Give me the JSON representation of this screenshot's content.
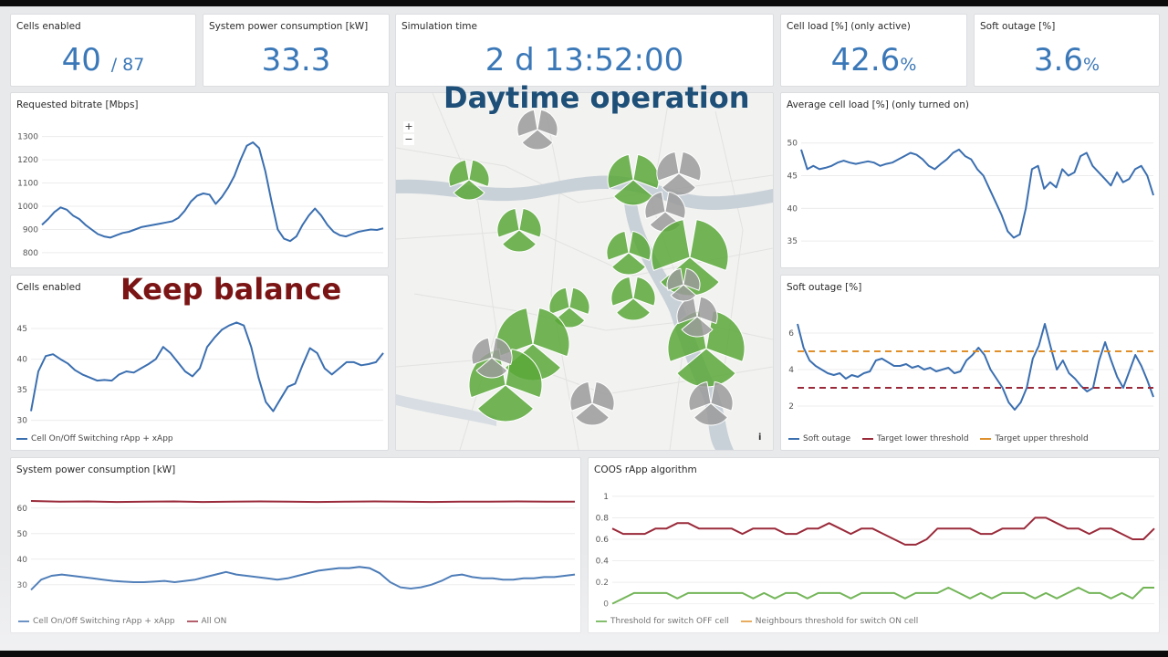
{
  "stats": {
    "cells_enabled": {
      "title": "Cells enabled",
      "value": "40",
      "suffix": "/ 87"
    },
    "power": {
      "title": "System power consumption [kW]",
      "value": "33.3"
    },
    "sim_time": {
      "title": "Simulation time",
      "value": "2 d 13:52:00"
    },
    "cell_load": {
      "title": "Cell load [%] (only active)",
      "value": "42.6",
      "unit": "%"
    },
    "soft_outage": {
      "title": "Soft outage [%]",
      "value": "3.6",
      "unit": "%"
    }
  },
  "overlays": {
    "daytime": "Daytime operation",
    "balance": "Keep balance"
  },
  "map": {
    "zoom_in": "+",
    "zoom_out": "−",
    "info": "i"
  },
  "colors": {
    "blue": "#3b6fb0",
    "red": "#9a2a3a",
    "orange": "#e0902a",
    "green": "#5aa83a",
    "stat": "#3b78b8"
  },
  "charts": {
    "bitrate": {
      "title": "Requested bitrate [Mbps]",
      "type": "line",
      "yticks": [
        800,
        900,
        1000,
        1100,
        1200,
        1300
      ],
      "ylim": [
        780,
        1330
      ],
      "series": [
        {
          "name": "Requested bitrate",
          "color": "#3b6fb0",
          "values": [
            920,
            945,
            975,
            995,
            985,
            960,
            945,
            920,
            900,
            880,
            870,
            865,
            875,
            885,
            890,
            900,
            910,
            915,
            920,
            925,
            930,
            935,
            950,
            980,
            1020,
            1045,
            1055,
            1050,
            1010,
            1040,
            1080,
            1130,
            1200,
            1260,
            1275,
            1250,
            1150,
            1020,
            900,
            860,
            850,
            870,
            920,
            960,
            990,
            960,
            920,
            890,
            875,
            870,
            880,
            890,
            895,
            900,
            898,
            905
          ]
        }
      ]
    },
    "avg_cell_load": {
      "title": "Average cell load [%] (only turned on)",
      "type": "line",
      "yticks": [
        35,
        40,
        45,
        50
      ],
      "ylim": [
        32.5,
        51.5
      ],
      "series": [
        {
          "name": "Average cell load",
          "color": "#3b6fb0",
          "values": [
            49,
            46,
            46.5,
            46,
            46.2,
            46.5,
            47,
            47.3,
            47,
            46.8,
            47,
            47.2,
            47,
            46.5,
            46.8,
            47,
            47.5,
            48,
            48.5,
            48.2,
            47.5,
            46.5,
            46,
            46.8,
            47.5,
            48.5,
            49,
            48,
            47.5,
            46,
            45,
            43,
            41,
            39,
            36.5,
            35.5,
            36,
            40,
            46,
            46.5,
            43,
            44,
            43.2,
            46,
            45,
            45.5,
            48,
            48.5,
            46.5,
            45.5,
            44.5,
            43.5,
            45.5,
            44,
            44.5,
            46,
            46.5,
            45,
            42
          ]
        }
      ]
    },
    "cells_enabled": {
      "title": "Cells enabled",
      "type": "line",
      "yticks": [
        30,
        35,
        40,
        45
      ],
      "ylim": [
        29.5,
        46.5
      ],
      "series": [
        {
          "name": "Cell On/Off Switching rApp + xApp",
          "color": "#3b6fb0",
          "values": [
            31.5,
            38,
            40.5,
            40.8,
            40,
            39.3,
            38.2,
            37.5,
            37,
            36.5,
            36.6,
            36.5,
            37.5,
            38,
            37.8,
            38.5,
            39.2,
            40,
            42,
            41,
            39.5,
            38,
            37.2,
            38.5,
            42,
            43.5,
            44.8,
            45.5,
            46,
            45.5,
            42,
            37,
            33,
            31.5,
            33.5,
            35.5,
            36,
            39,
            41.8,
            41,
            38.5,
            37.5,
            38.5,
            39.5,
            39.5,
            39,
            39.2,
            39.5,
            41
          ]
        }
      ],
      "legend": [
        "Cell On/Off Switching rApp + xApp"
      ]
    },
    "soft_outage": {
      "title": "Soft outage [%]",
      "type": "line",
      "yticks": [
        2,
        4,
        6
      ],
      "ylim": [
        1.3,
        6.9
      ],
      "series": [
        {
          "name": "Soft outage",
          "color": "#3b6fb0",
          "values": [
            6.5,
            5.2,
            4.5,
            4.2,
            4,
            3.8,
            3.7,
            3.8,
            3.5,
            3.7,
            3.6,
            3.8,
            3.9,
            4.5,
            4.6,
            4.4,
            4.2,
            4.2,
            4.3,
            4.1,
            4.2,
            4,
            4.1,
            3.9,
            4,
            4.1,
            3.8,
            3.9,
            4.5,
            4.8,
            5.2,
            4.8,
            4,
            3.5,
            3,
            2.2,
            1.8,
            2.2,
            3,
            4.6,
            5.3,
            6.5,
            5.2,
            4,
            4.5,
            3.8,
            3.5,
            3.1,
            2.8,
            3,
            4.5,
            5.5,
            4.5,
            3.6,
            3,
            3.9,
            4.8,
            4.2,
            3.4,
            2.5
          ]
        },
        {
          "name": "Target lower threshold",
          "color": "#9a2a3a",
          "values": [
            3,
            3
          ]
        },
        {
          "name": "Target upper threshold",
          "color": "#e0902a",
          "values": [
            5,
            5
          ]
        }
      ],
      "legend": [
        "Soft outage",
        "Target lower threshold",
        "Target upper threshold"
      ]
    },
    "power": {
      "title": "System power consumption [kW]",
      "type": "line",
      "yticks": [
        30,
        40,
        50,
        60
      ],
      "ylim": [
        26,
        66
      ],
      "series": [
        {
          "name": "Cell On/Off Switching rApp + xApp",
          "color": "#3b6fb0",
          "values": [
            28,
            32,
            33.5,
            34,
            33.5,
            33,
            32.5,
            32,
            31.5,
            31.2,
            31,
            31,
            31.2,
            31.5,
            31,
            31.5,
            32,
            33,
            34,
            35,
            34,
            33.5,
            33,
            32.5,
            32,
            32.5,
            33.5,
            34.5,
            35.5,
            36,
            36.5,
            36.5,
            37,
            36.5,
            34.5,
            31,
            29,
            28.5,
            29,
            30,
            31.5,
            33.5,
            34,
            33,
            32.5,
            32.5,
            32,
            32,
            32.5,
            32.5,
            33,
            33,
            33.5,
            34
          ]
        },
        {
          "name": "All ON",
          "color": "#9a2a3a",
          "values": [
            62.8,
            62.5,
            62.6,
            62.4,
            62.5,
            62.6,
            62.4,
            62.5,
            62.6,
            62.5,
            62.4,
            62.5,
            62.6,
            62.5,
            62.4,
            62.5,
            62.5,
            62.6,
            62.5,
            62.5
          ]
        }
      ],
      "legend": [
        "Cell On/Off Switching rApp + xApp",
        "All ON"
      ]
    },
    "coos": {
      "title": "COOS rApp algorithm",
      "type": "line",
      "yticks": [
        0,
        0.2,
        0.4,
        0.6,
        0.8,
        1
      ],
      "ylim": [
        -0.02,
        1.05
      ],
      "series": [
        {
          "name": "Neighbours threshold for switch ON cell",
          "color": "#9a2a3a",
          "values": [
            0.7,
            0.65,
            0.65,
            0.65,
            0.7,
            0.7,
            0.75,
            0.75,
            0.7,
            0.7,
            0.7,
            0.7,
            0.65,
            0.7,
            0.7,
            0.7,
            0.65,
            0.65,
            0.7,
            0.7,
            0.75,
            0.7,
            0.65,
            0.7,
            0.7,
            0.65,
            0.6,
            0.55,
            0.55,
            0.6,
            0.7,
            0.7,
            0.7,
            0.7,
            0.65,
            0.65,
            0.7,
            0.7,
            0.7,
            0.8,
            0.8,
            0.75,
            0.7,
            0.7,
            0.65,
            0.7,
            0.7,
            0.65,
            0.6,
            0.6,
            0.7
          ]
        },
        {
          "name": "Threshold for switch OFF cell",
          "color": "#5aa83a",
          "values": [
            0,
            0.05,
            0.1,
            0.1,
            0.1,
            0.1,
            0.05,
            0.1,
            0.1,
            0.1,
            0.1,
            0.1,
            0.1,
            0.05,
            0.1,
            0.05,
            0.1,
            0.1,
            0.05,
            0.1,
            0.1,
            0.1,
            0.05,
            0.1,
            0.1,
            0.1,
            0.1,
            0.05,
            0.1,
            0.1,
            0.1,
            0.15,
            0.1,
            0.05,
            0.1,
            0.05,
            0.1,
            0.1,
            0.1,
            0.05,
            0.1,
            0.05,
            0.1,
            0.15,
            0.1,
            0.1,
            0.05,
            0.1,
            0.05,
            0.15,
            0.15
          ]
        }
      ],
      "legend": [
        "Threshold for switch OFF cell",
        "Neighbours threshold for switch ON cell"
      ]
    }
  }
}
